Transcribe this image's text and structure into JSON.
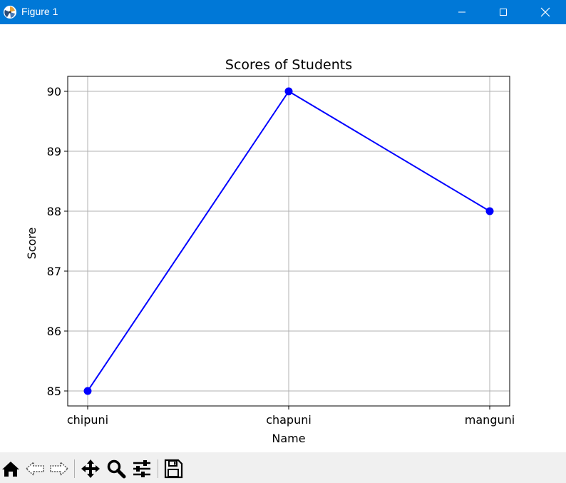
{
  "window": {
    "title": "Figure 1",
    "controls": [
      "minimize",
      "maximize",
      "close"
    ]
  },
  "toolbar": {
    "tools": [
      "home-icon",
      "back-arrow-icon",
      "forward-arrow-icon",
      "pan-move-icon",
      "zoom-magnifier-icon",
      "configure-subplots-icon",
      "save-floppy-icon"
    ]
  },
  "chart_data": {
    "type": "line",
    "title": "Scores of Students",
    "xlabel": "Name",
    "ylabel": "Score",
    "categories": [
      "chipuni",
      "chapuni",
      "manguni"
    ],
    "series": [
      {
        "values": [
          85,
          90,
          88
        ],
        "color": "#0000ff",
        "marker": "circle"
      }
    ],
    "yticks": [
      85,
      86,
      87,
      88,
      89,
      90
    ],
    "ylim": [
      84.75,
      90.25
    ],
    "grid": true
  }
}
